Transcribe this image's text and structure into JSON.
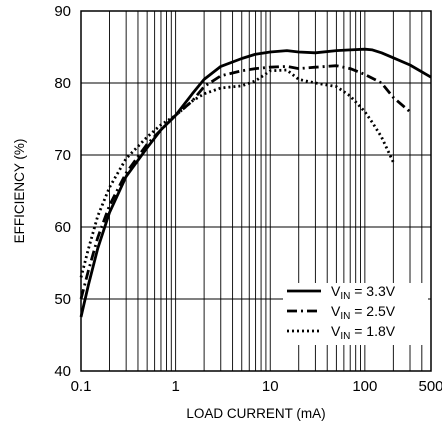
{
  "chart_data": {
    "type": "line",
    "title": "",
    "xlabel": "LOAD CURRENT (mA)",
    "ylabel": "EFFICIENCY (%)",
    "x_scale": "log",
    "xlim": [
      0.1,
      500
    ],
    "ylim": [
      40,
      90
    ],
    "grid": true,
    "legend_position": "bottom-right",
    "x_ticks": [
      {
        "value": 0.1,
        "label": "0.1"
      },
      {
        "value": 1,
        "label": "1"
      },
      {
        "value": 10,
        "label": "10"
      },
      {
        "value": 100,
        "label": "100"
      },
      {
        "value": 500,
        "label": "500"
      }
    ],
    "y_ticks": [
      {
        "value": 40,
        "label": "40"
      },
      {
        "value": 50,
        "label": "50"
      },
      {
        "value": 60,
        "label": "60"
      },
      {
        "value": 70,
        "label": "70"
      },
      {
        "value": 80,
        "label": "80"
      },
      {
        "value": 90,
        "label": "90"
      }
    ],
    "series": [
      {
        "name_main": "V",
        "name_sub": "IN",
        "name_rest": " = 3.3V",
        "style": "solid",
        "x": [
          0.1,
          0.12,
          0.15,
          0.2,
          0.3,
          0.5,
          0.7,
          1,
          1.5,
          2,
          3,
          5,
          7,
          10,
          15,
          20,
          30,
          50,
          70,
          100,
          120,
          150,
          200,
          300,
          500
        ],
        "y": [
          47.5,
          52,
          57,
          62,
          67,
          71,
          73.5,
          75.5,
          78.5,
          80.5,
          82.3,
          83.4,
          84,
          84.3,
          84.5,
          84.3,
          84.2,
          84.5,
          84.6,
          84.7,
          84.6,
          84.2,
          83.5,
          82.5,
          80.8
        ]
      },
      {
        "name_main": "V",
        "name_sub": "IN",
        "name_rest": " = 2.5V",
        "style": "dashdot",
        "x": [
          0.1,
          0.12,
          0.15,
          0.2,
          0.3,
          0.5,
          0.7,
          1,
          1.5,
          2,
          3,
          5,
          7,
          10,
          15,
          20,
          30,
          50,
          70,
          100,
          150,
          200,
          300
        ],
        "y": [
          50,
          54,
          58.5,
          63,
          67.5,
          71.5,
          73.5,
          75.5,
          77.5,
          79.5,
          81,
          81.7,
          82,
          82.2,
          82.3,
          82,
          82.2,
          82.4,
          82,
          81.2,
          80,
          78,
          76
        ]
      },
      {
        "name_main": "V",
        "name_sub": "IN",
        "name_rest": " = 1.8V",
        "style": "dotted",
        "x": [
          0.1,
          0.12,
          0.15,
          0.2,
          0.3,
          0.5,
          0.7,
          1,
          1.5,
          2,
          3,
          5,
          7,
          10,
          15,
          20,
          30,
          50,
          70,
          100,
          120,
          150,
          200
        ],
        "y": [
          53,
          57,
          61.5,
          65.5,
          69.5,
          72.5,
          74.2,
          75.5,
          77.5,
          78.5,
          79.3,
          79.6,
          80.3,
          81.7,
          81.8,
          80.5,
          80,
          79.5,
          78.2,
          76,
          74.5,
          72.5,
          69
        ]
      }
    ]
  }
}
